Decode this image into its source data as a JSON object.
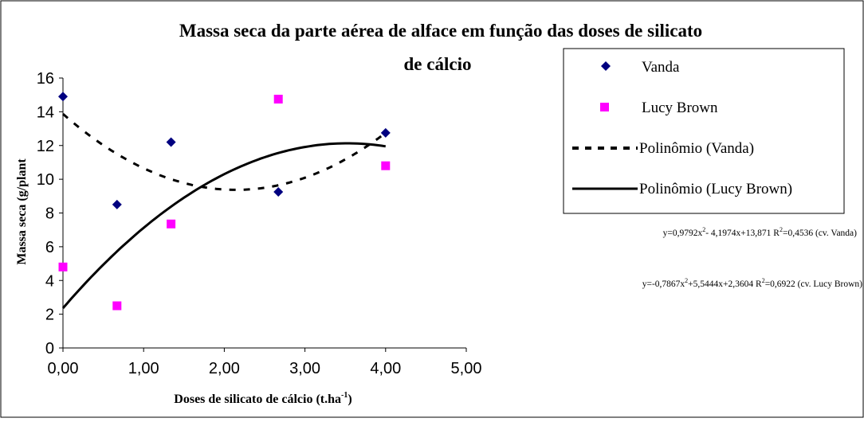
{
  "chart_data": {
    "type": "scatter",
    "title_line1": "Massa seca da parte aérea de alface em função das doses de silicato",
    "title_line2": "de cálcio",
    "xlabel": "Doses de silicato de cálcio (t.ha",
    "xlabel_sup": "-1",
    "xlabel_end": ")",
    "ylabel": "Massa seca (g/plant",
    "xlim": [
      0,
      5
    ],
    "ylim": [
      0,
      16
    ],
    "x_ticks": [
      "0,00",
      "1,00",
      "2,00",
      "3,00",
      "4,00",
      "5,00"
    ],
    "y_ticks": [
      "0",
      "2",
      "4",
      "6",
      "8",
      "10",
      "12",
      "14",
      "16"
    ],
    "grid": false,
    "legend_position": "right",
    "series": [
      {
        "name": "Vanda",
        "marker": "diamond",
        "color": "#000080",
        "x": [
          0,
          0.67,
          1.34,
          2.67,
          4.0
        ],
        "y": [
          14.9,
          8.5,
          12.2,
          9.25,
          12.75
        ]
      },
      {
        "name": "Lucy Brown",
        "marker": "square",
        "color": "#ff00ff",
        "x": [
          0,
          0.67,
          1.34,
          2.67,
          4.0
        ],
        "y": [
          4.8,
          2.5,
          7.35,
          14.75,
          10.8
        ]
      }
    ],
    "trendlines": [
      {
        "name": "Polinômio (Vanda)",
        "style": "dashed",
        "color": "#000000",
        "a": 0.9792,
        "b": -4.1974,
        "c": 13.871,
        "x_range": [
          0,
          4
        ]
      },
      {
        "name": "Polinômio (Lucy Brown)",
        "style": "solid",
        "color": "#000000",
        "a": -0.7867,
        "b": 5.5444,
        "c": 2.3604,
        "x_range": [
          0,
          4
        ]
      }
    ],
    "equations": [
      {
        "text": "y=0,9792x",
        "sup": "2",
        "rest": "- 4,1974x+13,871 R",
        "r2sup": "2",
        "end": "=0,4536 (cv. Vanda)"
      },
      {
        "text": "y=-0,7867x",
        "sup": "2",
        "rest": "+5,5444x+2,3604 R",
        "r2sup": "2",
        "end": "=0,6922 (cv. Lucy Brown)"
      }
    ]
  }
}
